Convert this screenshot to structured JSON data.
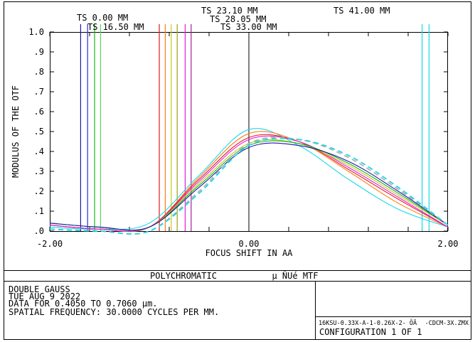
{
  "chart_data": {
    "type": "line",
    "xlabel": "FOCUS SHIFT IN  AA",
    "ylabel": "MODULUS OF THE OTF",
    "xlim": [
      -2.0,
      2.0
    ],
    "ylim": [
      0.0,
      1.0
    ],
    "x_tick_labels": [
      {
        "value": -2.0,
        "label": "-2.00"
      },
      {
        "value": 0.0,
        "label": "0.00"
      },
      {
        "value": 2.0,
        "label": "2.00"
      }
    ],
    "y_tick_labels": [
      {
        "value": 0.0,
        "label": ".0"
      },
      {
        "value": 0.1,
        "label": ".1"
      },
      {
        "value": 0.2,
        "label": ".2"
      },
      {
        "value": 0.3,
        "label": ".3"
      },
      {
        "value": 0.4,
        "label": ".4"
      },
      {
        "value": 0.5,
        "label": ".5"
      },
      {
        "value": 0.6,
        "label": ".6"
      },
      {
        "value": 0.7,
        "label": ".7"
      },
      {
        "value": 0.8,
        "label": ".8"
      },
      {
        "value": 0.9,
        "label": ".9"
      },
      {
        "value": 1.0,
        "label": "1.0"
      }
    ],
    "field_markers": [
      {
        "label": "TS 0.00 MM",
        "colors": [
          "#1a1aa8",
          "#2a2ae8"
        ],
        "positions": [
          -1.69,
          -1.62
        ]
      },
      {
        "label": "TS 16.50 MM",
        "colors": [
          "#1ab01a",
          "#55dd55"
        ],
        "positions": [
          -1.55,
          -1.49
        ]
      },
      {
        "label": "TS 23.10 MM",
        "colors": [
          "#e01818",
          "#ff7a1a"
        ],
        "positions": [
          -0.9,
          -0.84
        ]
      },
      {
        "label": "TS 28.05 MM",
        "colors": [
          "#c8c81a",
          "#a0a01a"
        ],
        "positions": [
          -0.78,
          -0.72
        ]
      },
      {
        "label": "TS 33.00 MM",
        "colors": [
          "#e020e0",
          "#a020a0"
        ],
        "positions": [
          -0.64,
          -0.58
        ]
      },
      {
        "label": "TS 41.00 MM",
        "colors": [
          "#18d8e8",
          "#18d8e8"
        ],
        "positions": [
          1.74,
          1.81
        ]
      }
    ],
    "series": [
      {
        "color": "#18d8e8",
        "dashed": false,
        "x": [
          -2.0,
          -1.5,
          -1.0,
          -0.5,
          0.0,
          0.5,
          1.0,
          1.5,
          2.0
        ],
        "y": [
          0.02,
          0.01,
          0.04,
          0.28,
          0.51,
          0.43,
          0.26,
          0.11,
          0.02
        ]
      },
      {
        "color": "#ff7a1a",
        "dashed": false,
        "x": [
          -2.0,
          -1.5,
          -1.0,
          -0.5,
          0.0,
          0.5,
          1.0,
          1.5,
          2.0
        ],
        "y": [
          0.03,
          0.01,
          0.02,
          0.27,
          0.49,
          0.45,
          0.3,
          0.14,
          0.02
        ]
      },
      {
        "color": "#e01818",
        "dashed": false,
        "x": [
          -2.0,
          -1.5,
          -1.0,
          -0.5,
          0.0,
          0.5,
          1.0,
          1.5,
          2.0
        ],
        "y": [
          0.03,
          0.01,
          0.02,
          0.26,
          0.47,
          0.45,
          0.31,
          0.16,
          0.02
        ]
      },
      {
        "color": "#e020e0",
        "dashed": false,
        "x": [
          -2.0,
          -1.5,
          -1.0,
          -0.5,
          0.0,
          0.5,
          1.0,
          1.5,
          2.0
        ],
        "y": [
          0.03,
          0.01,
          0.02,
          0.25,
          0.46,
          0.45,
          0.32,
          0.17,
          0.02
        ]
      },
      {
        "color": "#c8c81a",
        "dashed": false,
        "x": [
          -2.0,
          -1.5,
          -1.0,
          -0.5,
          0.0,
          0.5,
          1.0,
          1.5,
          2.0
        ],
        "y": [
          0.04,
          0.02,
          0.02,
          0.24,
          0.44,
          0.44,
          0.33,
          0.18,
          0.03
        ]
      },
      {
        "color": "#1ab01a",
        "dashed": false,
        "x": [
          -2.0,
          -1.5,
          -1.0,
          -0.5,
          0.0,
          0.5,
          1.0,
          1.5,
          2.0
        ],
        "y": [
          0.04,
          0.02,
          0.02,
          0.23,
          0.43,
          0.44,
          0.34,
          0.19,
          0.03
        ]
      },
      {
        "color": "#1a1aa8",
        "dashed": false,
        "x": [
          -2.0,
          -1.5,
          -1.0,
          -0.5,
          0.0,
          0.5,
          1.0,
          1.5,
          2.0
        ],
        "y": [
          0.04,
          0.02,
          0.02,
          0.22,
          0.42,
          0.43,
          0.35,
          0.2,
          0.03
        ]
      },
      {
        "color": "#b0b0b0",
        "dashed": true,
        "x": [
          -2.0,
          -1.5,
          -1.0,
          -0.5,
          0.0,
          0.5,
          1.0,
          1.5,
          2.0
        ],
        "y": [
          0.01,
          0.0,
          0.0,
          0.2,
          0.44,
          0.46,
          0.37,
          0.21,
          0.03
        ]
      },
      {
        "color": "#18d8e8",
        "dashed": true,
        "x": [
          -2.0,
          -1.5,
          -1.0,
          -0.5,
          0.0,
          0.5,
          1.0,
          1.5,
          2.0
        ],
        "y": [
          0.01,
          0.0,
          0.0,
          0.19,
          0.43,
          0.46,
          0.38,
          0.22,
          0.03
        ]
      }
    ],
    "grid": false
  },
  "footer": {
    "title_left": "POLYCHROMATIC",
    "title_right": "µ ÑUé MTF",
    "lines": [
      "DOUBLE GAUSS",
      "TUE AUG 9 2022",
      "DATA FOR 0.4050 TO 0.7060 µm.",
      "SPATIAL FREQUENCY: 30.0000 CYCLES PER MM."
    ],
    "file_name": "16KSU-0.33X-A-1-0.26X-2- ÕÄ",
    "file_suffix": "-CDCM-3X.ZMX",
    "configuration": "CONFIGURATION  1 OF  1"
  }
}
